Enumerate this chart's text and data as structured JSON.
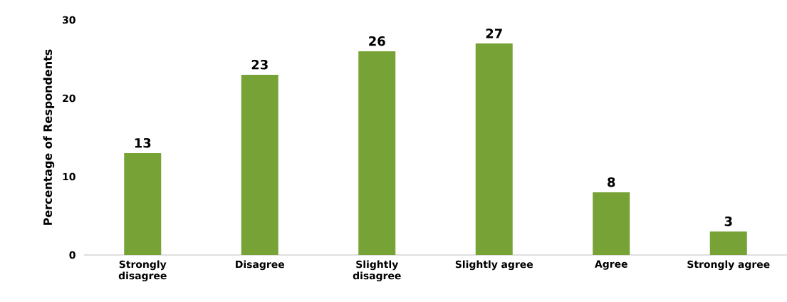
{
  "chart_data": {
    "type": "bar",
    "ylabel": "Percentage of Respondents",
    "categories": [
      "Strongly disagree",
      "Disagree",
      "Slightly disagree",
      "Slightly agree",
      "Agree",
      "Strongly agree"
    ],
    "values": [
      13,
      23,
      26,
      27,
      8,
      3
    ],
    "color": "#77a336",
    "ylim": [
      0,
      30
    ],
    "yticks": [
      0,
      10,
      20,
      30
    ],
    "data_labels": true
  }
}
